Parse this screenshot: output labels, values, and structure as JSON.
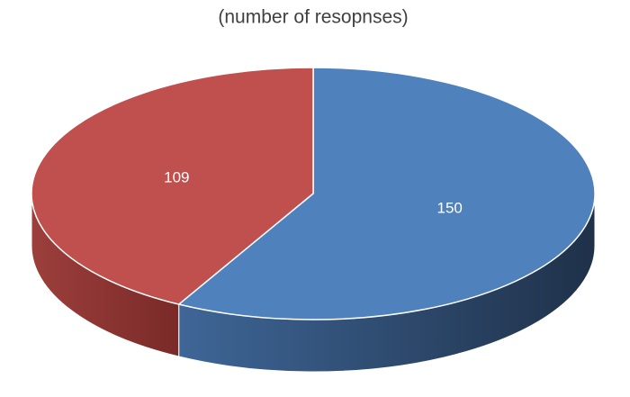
{
  "chart_data": {
    "type": "pie",
    "subtitle": "(number of resopnses)",
    "values": [
      150,
      109
    ],
    "colors": [
      "#4f81bd",
      "#c0504d"
    ]
  }
}
